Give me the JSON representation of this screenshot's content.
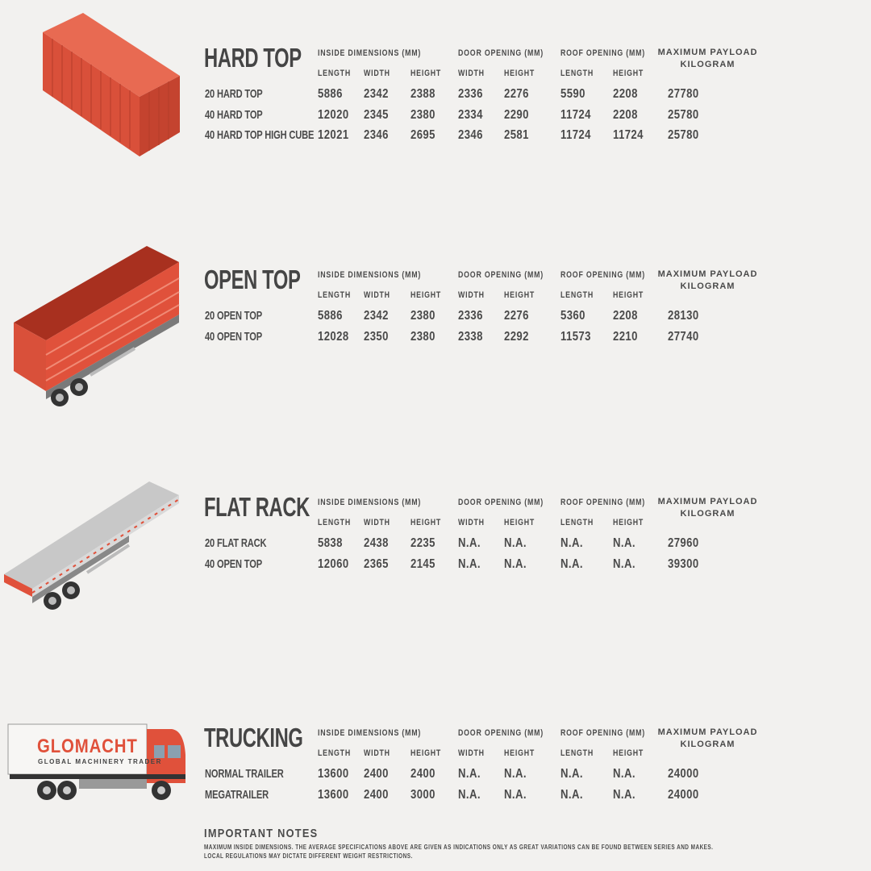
{
  "column_headers": {
    "inside": "INSIDE DIMENSIONS (MM)",
    "door": "DOOR OPENING (MM)",
    "roof": "ROOF OPENING (MM)",
    "payload_line1": "MAXIMUM PAYLOAD",
    "payload_line2": "KILOGRAM",
    "sub": [
      "LENGTH",
      "WIDTH",
      "HEIGHT",
      "WIDTH",
      "HEIGHT",
      "LENGTH",
      "HEIGHT"
    ]
  },
  "sections": [
    {
      "title": "HARD TOP",
      "rows": [
        {
          "name": "20 HARD TOP",
          "values": [
            "5886",
            "2342",
            "2388",
            "2336",
            "2276",
            "5590",
            "2208",
            "27780"
          ]
        },
        {
          "name": "40 HARD TOP",
          "values": [
            "12020",
            "2345",
            "2380",
            "2334",
            "2290",
            "11724",
            "2208",
            "25780"
          ]
        },
        {
          "name": "40 HARD TOP HIGH CUBE",
          "values": [
            "12021",
            "2346",
            "2695",
            "2346",
            "2581",
            "11724",
            "11724",
            "25780"
          ]
        }
      ]
    },
    {
      "title": "OPEN TOP",
      "rows": [
        {
          "name": "20 OPEN TOP",
          "values": [
            "5886",
            "2342",
            "2380",
            "2336",
            "2276",
            "5360",
            "2208",
            "28130"
          ]
        },
        {
          "name": "40 OPEN TOP",
          "values": [
            "12028",
            "2350",
            "2380",
            "2338",
            "2292",
            "11573",
            "2210",
            "27740"
          ]
        }
      ]
    },
    {
      "title": "FLAT RACK",
      "rows": [
        {
          "name": "20 FLAT RACK",
          "values": [
            "5838",
            "2438",
            "2235",
            "N.A.",
            "N.A.",
            "N.A.",
            "N.A.",
            "27960"
          ]
        },
        {
          "name": "40 OPEN TOP",
          "values": [
            "12060",
            "2365",
            "2145",
            "N.A.",
            "N.A.",
            "N.A.",
            "N.A.",
            "39300"
          ]
        }
      ]
    },
    {
      "title": "TRUCKING",
      "rows": [
        {
          "name": "NORMAL TRAILER",
          "values": [
            "13600",
            "2400",
            "2400",
            "N.A.",
            "N.A.",
            "N.A.",
            "N.A.",
            "24000"
          ]
        },
        {
          "name": "MEGATRAILER",
          "values": [
            "13600",
            "2400",
            "3000",
            "N.A.",
            "N.A.",
            "N.A.",
            "N.A.",
            "24000"
          ]
        }
      ]
    }
  ],
  "truck_logo": {
    "brand": "GLOMACHT",
    "tagline": "GLOBAL MACHINERY TRADER"
  },
  "notes": {
    "title": "IMPORTANT NOTES",
    "line1": "MAXIMUM INSIDE DIMENSIONS. THE AVERAGE SPECIFICATIONS ABOVE ARE GIVEN AS INDICATIONS ONLY AS GREAT VARIATIONS CAN BE FOUND BETWEEN SERIES AND MAKES.",
    "line2": "LOCAL REGULATIONS MAY DICTATE DIFFERENT WEIGHT RESTRICTIONS."
  },
  "colors": {
    "container_red": "#e0513b",
    "text": "#4a4a4a",
    "background": "#f2f1ef",
    "flatrack_gray": "#c8c8c8"
  }
}
